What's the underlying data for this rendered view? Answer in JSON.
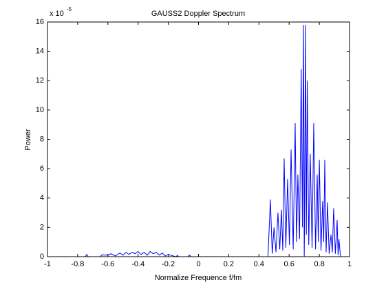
{
  "chart_data": {
    "type": "line",
    "title": "GAUSS2 Doppler Spectrum",
    "x_label": "Normalize Frequence f/fm",
    "y_label": "Power",
    "y_multiplier": "x 10",
    "y_exponent": "-5",
    "xlim": [
      -1,
      1
    ],
    "xticks": [
      -1,
      -0.8,
      -0.6,
      -0.4,
      -0.2,
      0,
      0.2,
      0.4,
      0.6,
      0.8,
      1
    ],
    "ylim": [
      0,
      16
    ],
    "yticks": [
      0,
      2,
      4,
      6,
      8,
      10,
      12,
      14,
      16
    ],
    "grid": false,
    "x": [
      -1,
      -0.75,
      -0.74,
      -0.73,
      -0.65,
      -0.64,
      -0.6,
      -0.58,
      -0.55,
      -0.52,
      -0.5,
      -0.48,
      -0.46,
      -0.44,
      -0.42,
      -0.4,
      -0.38,
      -0.36,
      -0.34,
      -0.32,
      -0.3,
      -0.28,
      -0.26,
      -0.24,
      -0.22,
      -0.2,
      -0.15,
      -0.14,
      -0.13,
      -0.07,
      -0.06,
      -0.05,
      0.46,
      0.476,
      0.488,
      0.5,
      0.513,
      0.526,
      0.538,
      0.549,
      0.558,
      0.567,
      0.578,
      0.59,
      0.602,
      0.613,
      0.627,
      0.64,
      0.649,
      0.658,
      0.669,
      0.68,
      0.688,
      0.695,
      0.7,
      0.702,
      0.708,
      0.714,
      0.72,
      0.73,
      0.74,
      0.752,
      0.763,
      0.775,
      0.786,
      0.793,
      0.8,
      0.811,
      0.822,
      0.829,
      0.836,
      0.845,
      0.854,
      0.865,
      0.877,
      0.886,
      0.895,
      0.906,
      0.918,
      0.924,
      0.93,
      0.94,
      1
    ],
    "series": [
      {
        "color": "#0000ff",
        "values": [
          0,
          0,
          0.15,
          0,
          0,
          0.12,
          0.1,
          0.2,
          0.05,
          0.25,
          0.1,
          0.3,
          0.15,
          0.3,
          0.2,
          0.35,
          0.15,
          0.3,
          0.1,
          0.35,
          0.2,
          0.3,
          0.1,
          0.25,
          0.05,
          0.15,
          0,
          0.08,
          0,
          0,
          0.1,
          0,
          0,
          3.9,
          0.2,
          2,
          0.3,
          3,
          0.5,
          3.2,
          0.4,
          6.7,
          0.6,
          5.3,
          0.8,
          7.3,
          0.5,
          9.1,
          1,
          5.6,
          1.2,
          12.8,
          2,
          15.8,
          0,
          2,
          15.8,
          1.5,
          12,
          0.8,
          7,
          0.6,
          9.1,
          0.5,
          5.6,
          1,
          6.6,
          0.4,
          3.8,
          1,
          6.6,
          0.3,
          3.7,
          0.2,
          1.5,
          0.3,
          3.3,
          0.2,
          2.5,
          0.1,
          1.2,
          0,
          0
        ]
      }
    ]
  }
}
